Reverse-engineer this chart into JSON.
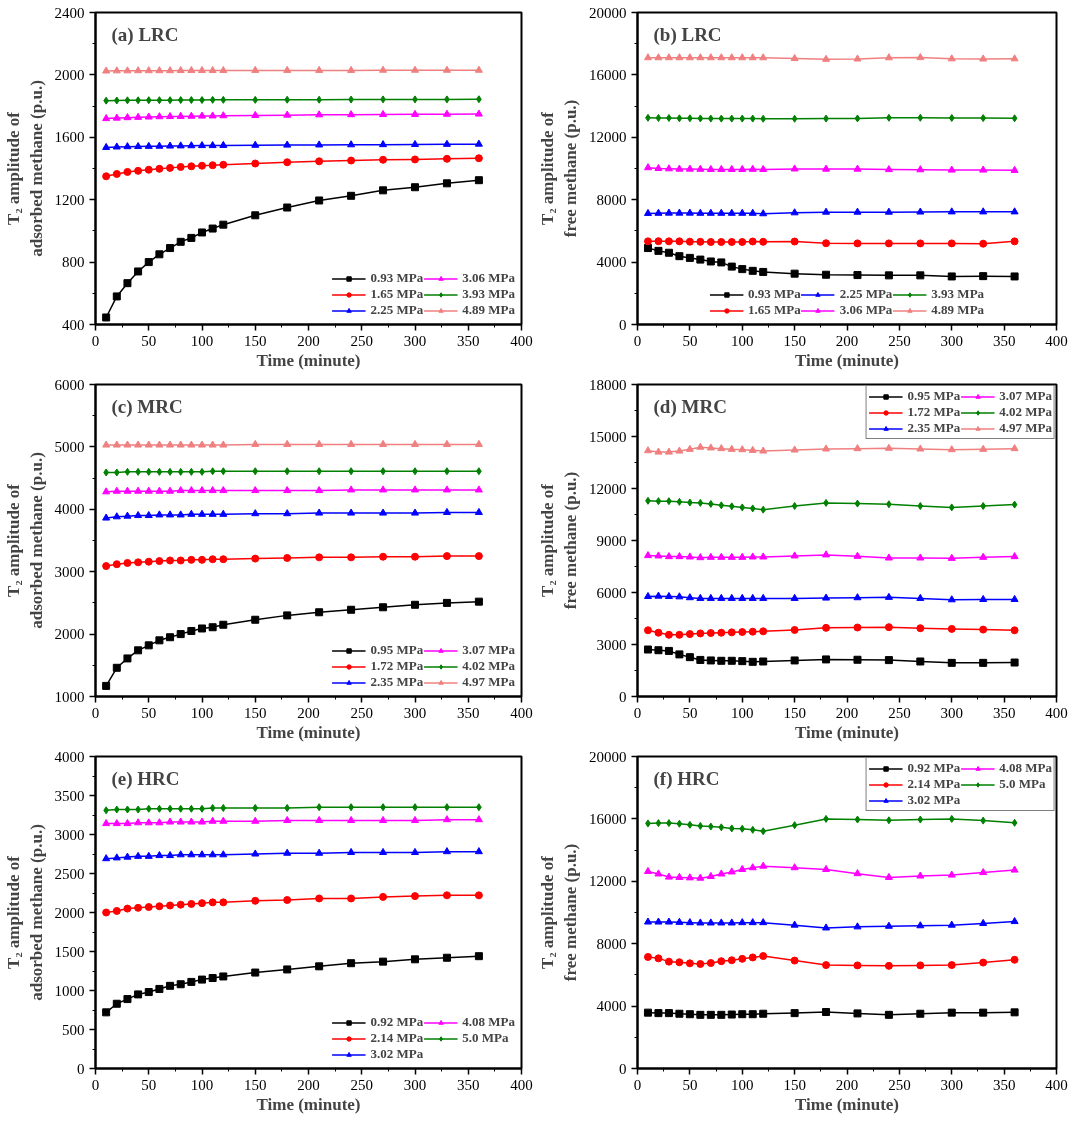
{
  "chart_data": [
    {
      "type": "line",
      "title": "(a) LRC",
      "xlabel": "Time (minute)",
      "ylabel": "T₂ amplitude of adsorbed methane (p.u.)",
      "x": [
        10,
        20,
        30,
        40,
        50,
        60,
        70,
        80,
        90,
        100,
        110,
        120,
        150,
        180,
        210,
        240,
        270,
        300,
        330,
        360
      ],
      "xlim": [
        0,
        400
      ],
      "xticks": [
        0,
        50,
        100,
        150,
        200,
        250,
        300,
        350,
        400
      ],
      "ylim": [
        400,
        2400
      ],
      "yticks": [
        400,
        800,
        1200,
        1600,
        2000,
        2400
      ],
      "grid": false,
      "legend": "bottom right",
      "series": [
        {
          "name": "0.93 MPa",
          "color": "#000000",
          "marker": "square",
          "values": [
            445,
            580,
            665,
            740,
            800,
            850,
            890,
            930,
            955,
            990,
            1015,
            1040,
            1100,
            1150,
            1195,
            1225,
            1260,
            1280,
            1305,
            1325
          ]
        },
        {
          "name": "1.65 MPa",
          "color": "#ff0000",
          "marker": "circle",
          "values": [
            1350,
            1365,
            1378,
            1385,
            1392,
            1398,
            1404,
            1410,
            1414,
            1418,
            1421,
            1424,
            1432,
            1440,
            1446,
            1451,
            1456,
            1458,
            1462,
            1466
          ]
        },
        {
          "name": "2.25 MPa",
          "color": "#0000ff",
          "marker": "triangle",
          "values": [
            1535,
            1538,
            1540,
            1541,
            1542,
            1543,
            1544,
            1545,
            1546,
            1547,
            1547,
            1548,
            1549,
            1550,
            1551,
            1552,
            1553,
            1554,
            1555,
            1556
          ]
        },
        {
          "name": "3.06 MPa",
          "color": "#ff00ff",
          "marker": "triangle",
          "values": [
            1720,
            1723,
            1726,
            1728,
            1730,
            1732,
            1733,
            1734,
            1735,
            1736,
            1737,
            1738,
            1740,
            1742,
            1744,
            1745,
            1746,
            1747,
            1748,
            1749
          ]
        },
        {
          "name": "3.93 MPa",
          "color": "#008000",
          "marker": "diamond",
          "values": [
            1835,
            1836,
            1837,
            1837,
            1838,
            1838,
            1838,
            1839,
            1839,
            1839,
            1840,
            1840,
            1840,
            1841,
            1841,
            1842,
            1843,
            1843,
            1843,
            1844
          ]
        },
        {
          "name": "4.89 MPa",
          "color": "#f08080",
          "marker": "triangle",
          "values": [
            2025,
            2026,
            2026,
            2027,
            2027,
            2027,
            2027,
            2028,
            2028,
            2028,
            2028,
            2028,
            2029,
            2029,
            2029,
            2029,
            2030,
            2030,
            2030,
            2030
          ]
        }
      ]
    },
    {
      "type": "line",
      "title": "(b) LRC",
      "xlabel": "Time (minute)",
      "ylabel": "T₂ amplitude of free methane (p.u.)",
      "x": [
        10,
        20,
        30,
        40,
        50,
        60,
        70,
        80,
        90,
        100,
        110,
        120,
        150,
        180,
        210,
        240,
        270,
        300,
        330,
        360
      ],
      "xlim": [
        0,
        400
      ],
      "xticks": [
        0,
        50,
        100,
        150,
        200,
        250,
        300,
        350,
        400
      ],
      "ylim": [
        0,
        20000
      ],
      "yticks": [
        0,
        4000,
        8000,
        12000,
        16000,
        20000
      ],
      "grid": false,
      "legend": "bottom",
      "series": [
        {
          "name": "0.93 MPa",
          "color": "#000000",
          "marker": "square",
          "values": [
            4900,
            4720,
            4600,
            4380,
            4270,
            4160,
            4040,
            3980,
            3710,
            3550,
            3440,
            3370,
            3260,
            3190,
            3170,
            3150,
            3150,
            3080,
            3100,
            3080
          ]
        },
        {
          "name": "1.65 MPa",
          "color": "#ff0000",
          "marker": "circle",
          "values": [
            5330,
            5340,
            5330,
            5330,
            5310,
            5300,
            5290,
            5290,
            5290,
            5290,
            5320,
            5300,
            5320,
            5210,
            5200,
            5200,
            5200,
            5200,
            5180,
            5330
          ]
        },
        {
          "name": "2.25 MPa",
          "color": "#0000ff",
          "marker": "triangle",
          "values": [
            7120,
            7130,
            7140,
            7140,
            7140,
            7130,
            7130,
            7130,
            7130,
            7130,
            7130,
            7100,
            7160,
            7200,
            7200,
            7200,
            7210,
            7220,
            7220,
            7220
          ]
        },
        {
          "name": "3.06 MPa",
          "color": "#ff00ff",
          "marker": "triangle",
          "values": [
            10050,
            10000,
            9980,
            9960,
            9960,
            9950,
            9940,
            9940,
            9940,
            9940,
            9950,
            9940,
            9970,
            9960,
            9960,
            9930,
            9920,
            9900,
            9900,
            9880
          ]
        },
        {
          "name": "3.93 MPa",
          "color": "#008000",
          "marker": "diamond",
          "values": [
            13250,
            13240,
            13240,
            13220,
            13220,
            13210,
            13200,
            13200,
            13200,
            13200,
            13200,
            13190,
            13190,
            13200,
            13210,
            13250,
            13250,
            13240,
            13230,
            13220
          ]
        },
        {
          "name": "4.89 MPa",
          "color": "#f08080",
          "marker": "triangle",
          "values": [
            17100,
            17100,
            17100,
            17100,
            17100,
            17100,
            17100,
            17100,
            17100,
            17100,
            17100,
            17100,
            17050,
            17000,
            17020,
            17100,
            17110,
            17030,
            17020,
            17030
          ]
        }
      ]
    },
    {
      "type": "line",
      "title": "(c) MRC",
      "xlabel": "Time (minute)",
      "ylabel": "T₂ amplitude of adsorbed methane (p.u.)",
      "x": [
        10,
        20,
        30,
        40,
        50,
        60,
        70,
        80,
        90,
        100,
        110,
        120,
        150,
        180,
        210,
        240,
        270,
        300,
        330,
        360
      ],
      "xlim": [
        0,
        400
      ],
      "xticks": [
        0,
        50,
        100,
        150,
        200,
        250,
        300,
        350,
        400
      ],
      "ylim": [
        1000,
        6000
      ],
      "yticks": [
        1000,
        2000,
        3000,
        4000,
        5000,
        6000
      ],
      "grid": false,
      "legend": "bottom right",
      "series": [
        {
          "name": "0.95 MPa",
          "color": "#000000",
          "marker": "square",
          "values": [
            1170,
            1460,
            1610,
            1740,
            1820,
            1900,
            1950,
            2000,
            2050,
            2090,
            2110,
            2150,
            2230,
            2300,
            2350,
            2390,
            2430,
            2470,
            2500,
            2520
          ]
        },
        {
          "name": "1.72 MPa",
          "color": "#ff0000",
          "marker": "circle",
          "values": [
            3090,
            3120,
            3140,
            3150,
            3160,
            3170,
            3180,
            3180,
            3190,
            3190,
            3200,
            3200,
            3210,
            3220,
            3230,
            3230,
            3240,
            3240,
            3250,
            3250
          ]
        },
        {
          "name": "2.35 MPa",
          "color": "#0000ff",
          "marker": "triangle",
          "values": [
            3860,
            3880,
            3890,
            3900,
            3900,
            3910,
            3910,
            3910,
            3920,
            3920,
            3920,
            3920,
            3930,
            3930,
            3940,
            3940,
            3940,
            3940,
            3950,
            3950
          ]
        },
        {
          "name": "3.07 MPa",
          "color": "#ff00ff",
          "marker": "triangle",
          "values": [
            4280,
            4290,
            4290,
            4290,
            4290,
            4290,
            4290,
            4300,
            4300,
            4300,
            4300,
            4300,
            4300,
            4300,
            4300,
            4310,
            4310,
            4310,
            4310,
            4310
          ]
        },
        {
          "name": "4.02 MPa",
          "color": "#008000",
          "marker": "diamond",
          "values": [
            4590,
            4590,
            4600,
            4600,
            4600,
            4600,
            4600,
            4600,
            4600,
            4600,
            4610,
            4610,
            4610,
            4610,
            4610,
            4610,
            4610,
            4610,
            4610,
            4610
          ]
        },
        {
          "name": "4.97 MPa",
          "color": "#f08080",
          "marker": "triangle",
          "values": [
            5030,
            5030,
            5030,
            5030,
            5030,
            5030,
            5030,
            5030,
            5030,
            5030,
            5030,
            5030,
            5040,
            5040,
            5040,
            5040,
            5040,
            5040,
            5040,
            5040
          ]
        }
      ]
    },
    {
      "type": "line",
      "title": "(d) MRC",
      "xlabel": "Time (minute)",
      "ylabel": "T₂ amplitude of free methane (p.u.)",
      "x": [
        10,
        20,
        30,
        40,
        50,
        60,
        70,
        80,
        90,
        100,
        110,
        120,
        150,
        180,
        210,
        240,
        270,
        300,
        330,
        360
      ],
      "xlim": [
        0,
        400
      ],
      "xticks": [
        0,
        50,
        100,
        150,
        200,
        250,
        300,
        350,
        400
      ],
      "ylim": [
        0,
        18000
      ],
      "yticks": [
        0,
        3000,
        6000,
        9000,
        12000,
        15000,
        18000
      ],
      "grid": false,
      "legend": "top right",
      "series": [
        {
          "name": "0.95 MPa",
          "color": "#000000",
          "marker": "square",
          "values": [
            2710,
            2670,
            2630,
            2430,
            2270,
            2110,
            2080,
            2060,
            2060,
            2040,
            2000,
            2020,
            2080,
            2140,
            2120,
            2100,
            2020,
            1940,
            1940,
            1960
          ]
        },
        {
          "name": "1.72 MPa",
          "color": "#ff0000",
          "marker": "circle",
          "values": [
            3820,
            3680,
            3560,
            3560,
            3600,
            3640,
            3660,
            3680,
            3700,
            3720,
            3740,
            3760,
            3840,
            3960,
            3980,
            4000,
            3940,
            3900,
            3860,
            3820
          ]
        },
        {
          "name": "2.35 MPa",
          "color": "#0000ff",
          "marker": "triangle",
          "values": [
            5770,
            5790,
            5770,
            5750,
            5700,
            5660,
            5660,
            5660,
            5660,
            5660,
            5660,
            5660,
            5660,
            5680,
            5700,
            5720,
            5660,
            5580,
            5600,
            5600
          ]
        },
        {
          "name": "3.07 MPa",
          "color": "#ff00ff",
          "marker": "triangle",
          "values": [
            8130,
            8110,
            8070,
            8070,
            8050,
            8010,
            8030,
            8030,
            8030,
            8030,
            8050,
            8050,
            8110,
            8170,
            8090,
            7990,
            7990,
            7970,
            8030,
            8070
          ]
        },
        {
          "name": "4.02 MPa",
          "color": "#008000",
          "marker": "diamond",
          "values": [
            11290,
            11270,
            11270,
            11230,
            11190,
            11170,
            11110,
            11030,
            10970,
            10910,
            10850,
            10780,
            10990,
            11170,
            11130,
            11090,
            10990,
            10910,
            10990,
            11070
          ]
        },
        {
          "name": "4.97 MPa",
          "color": "#f08080",
          "marker": "triangle",
          "values": [
            14180,
            14100,
            14100,
            14160,
            14260,
            14380,
            14340,
            14300,
            14260,
            14240,
            14200,
            14160,
            14220,
            14280,
            14300,
            14320,
            14280,
            14240,
            14260,
            14300
          ]
        }
      ]
    },
    {
      "type": "line",
      "title": "(e) HRC",
      "xlabel": "Time (minute)",
      "ylabel": "T₂ amplitude of adsorbed methane (p.u.)",
      "x": [
        10,
        20,
        30,
        40,
        50,
        60,
        70,
        80,
        90,
        100,
        110,
        120,
        150,
        180,
        210,
        240,
        270,
        300,
        330,
        360
      ],
      "xlim": [
        0,
        400
      ],
      "xticks": [
        0,
        50,
        100,
        150,
        200,
        250,
        300,
        350,
        400
      ],
      "ylim": [
        0,
        4000
      ],
      "yticks": [
        0,
        500,
        1000,
        1500,
        2000,
        2500,
        3000,
        3500,
        4000
      ],
      "grid": false,
      "legend": "bottom right",
      "series": [
        {
          "name": "0.92 MPa",
          "color": "#000000",
          "marker": "square",
          "values": [
            720,
            830,
            890,
            950,
            980,
            1020,
            1060,
            1080,
            1110,
            1140,
            1160,
            1180,
            1230,
            1270,
            1310,
            1350,
            1370,
            1400,
            1420,
            1440
          ]
        },
        {
          "name": "2.14 MPa",
          "color": "#ff0000",
          "marker": "circle",
          "values": [
            2000,
            2020,
            2050,
            2060,
            2070,
            2080,
            2090,
            2100,
            2110,
            2120,
            2130,
            2130,
            2150,
            2160,
            2180,
            2180,
            2200,
            2210,
            2220,
            2220
          ]
        },
        {
          "name": "3.02 MPa",
          "color": "#0000ff",
          "marker": "triangle",
          "values": [
            2690,
            2700,
            2710,
            2720,
            2720,
            2730,
            2730,
            2740,
            2740,
            2740,
            2740,
            2740,
            2750,
            2760,
            2760,
            2770,
            2770,
            2770,
            2780,
            2780
          ]
        },
        {
          "name": "4.08 MPa",
          "color": "#ff00ff",
          "marker": "triangle",
          "values": [
            3140,
            3140,
            3140,
            3150,
            3150,
            3150,
            3160,
            3160,
            3160,
            3160,
            3170,
            3170,
            3170,
            3180,
            3180,
            3180,
            3180,
            3180,
            3190,
            3190
          ]
        },
        {
          "name": "5.0 MPa",
          "color": "#008000",
          "marker": "diamond",
          "values": [
            3310,
            3320,
            3320,
            3320,
            3330,
            3330,
            3330,
            3330,
            3330,
            3330,
            3340,
            3340,
            3340,
            3340,
            3350,
            3350,
            3350,
            3350,
            3350,
            3350
          ]
        }
      ]
    },
    {
      "type": "line",
      "title": "(f) HRC",
      "xlabel": "Time (minute)",
      "ylabel": "T₂ amplitude of free methane (p.u.)",
      "x": [
        10,
        20,
        30,
        40,
        50,
        60,
        70,
        80,
        90,
        100,
        110,
        120,
        150,
        180,
        210,
        240,
        270,
        300,
        330,
        360
      ],
      "xlim": [
        0,
        400
      ],
      "xticks": [
        0,
        50,
        100,
        150,
        200,
        250,
        300,
        350,
        400
      ],
      "ylim": [
        0,
        20000
      ],
      "yticks": [
        0,
        4000,
        8000,
        12000,
        16000,
        20000
      ],
      "grid": false,
      "legend": "top right",
      "series": [
        {
          "name": "0.92 MPa",
          "color": "#000000",
          "marker": "square",
          "values": [
            3580,
            3550,
            3550,
            3510,
            3480,
            3440,
            3440,
            3440,
            3460,
            3480,
            3480,
            3510,
            3550,
            3620,
            3530,
            3440,
            3510,
            3580,
            3580,
            3600
          ]
        },
        {
          "name": "2.14 MPa",
          "color": "#ff0000",
          "marker": "circle",
          "values": [
            7150,
            7060,
            6850,
            6810,
            6740,
            6700,
            6760,
            6880,
            6940,
            7030,
            7120,
            7210,
            6920,
            6630,
            6610,
            6580,
            6610,
            6630,
            6790,
            6970
          ]
        },
        {
          "name": "3.02 MPa",
          "color": "#0000ff",
          "marker": "triangle",
          "values": [
            9390,
            9390,
            9390,
            9370,
            9350,
            9330,
            9330,
            9330,
            9330,
            9350,
            9350,
            9350,
            9190,
            9010,
            9080,
            9120,
            9150,
            9190,
            9300,
            9420
          ]
        },
        {
          "name": "4.08 MPa",
          "color": "#ff00ff",
          "marker": "triangle",
          "values": [
            12630,
            12470,
            12270,
            12250,
            12220,
            12200,
            12310,
            12470,
            12600,
            12760,
            12870,
            12970,
            12870,
            12760,
            12490,
            12250,
            12340,
            12400,
            12560,
            12720
          ]
        },
        {
          "name": "5.0 MPa",
          "color": "#008000",
          "marker": "diamond",
          "values": [
            15710,
            15730,
            15730,
            15690,
            15620,
            15550,
            15510,
            15460,
            15390,
            15370,
            15300,
            15210,
            15600,
            16000,
            15960,
            15910,
            15960,
            16000,
            15890,
            15750
          ]
        }
      ]
    }
  ]
}
